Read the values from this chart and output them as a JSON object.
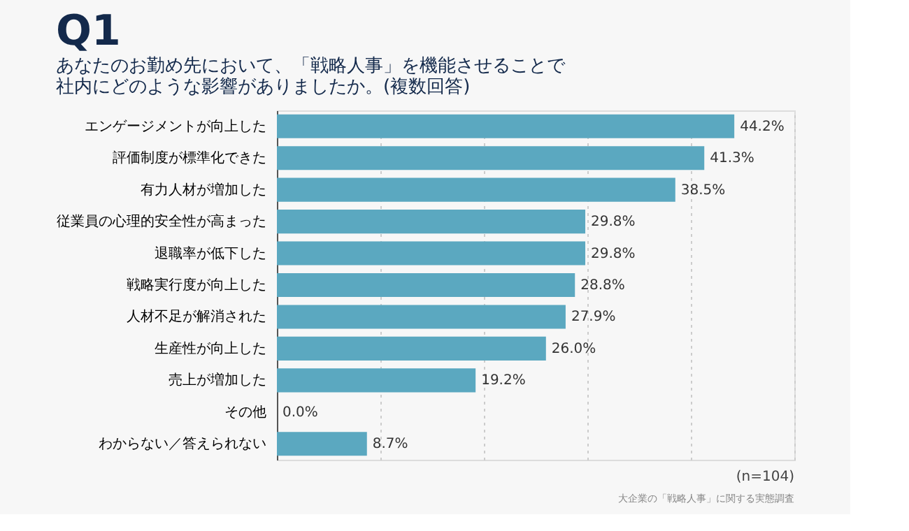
{
  "chart_data": {
    "type": "bar",
    "orientation": "horizontal",
    "title": "Q1",
    "subtitle": "あなたのお勤め先において、「戦略人事」を機能させることで社内にどのような影響がありましたか。(複数回答)",
    "categories": [
      "エンゲージメントが向上した",
      "評価制度が標準化できた",
      "有力人材が増加した",
      "従業員の心理的安全性が高まった",
      "退職率が低下した",
      "戦略実行度が向上した",
      "人材不足が解消された",
      "生産性が向上した",
      "売上が増加した",
      "その他",
      "わからない／答えられない"
    ],
    "values": [
      44.2,
      41.3,
      38.5,
      29.8,
      29.8,
      28.8,
      27.9,
      26.0,
      19.2,
      0.0,
      8.7
    ],
    "value_labels": [
      "44.2%",
      "41.3%",
      "38.5%",
      "29.8%",
      "29.8%",
      "28.8%",
      "27.9%",
      "26.0%",
      "19.2%",
      "0.0%",
      "8.7%"
    ],
    "color": "#5ba8c0",
    "xlim": [
      0,
      50
    ],
    "xticks": [
      {
        "value": 0,
        "label": null
      },
      {
        "value": 10,
        "label": null
      },
      {
        "value": 20,
        "label": null
      },
      {
        "value": 30,
        "label": null
      },
      {
        "value": 40,
        "label": null
      },
      {
        "value": 50,
        "label": null
      }
    ],
    "grid": "x",
    "tick_labels": "y",
    "annotations": [
      "(n=104)",
      "大企業の「戦略人事」に関する実態調査"
    ]
  }
}
